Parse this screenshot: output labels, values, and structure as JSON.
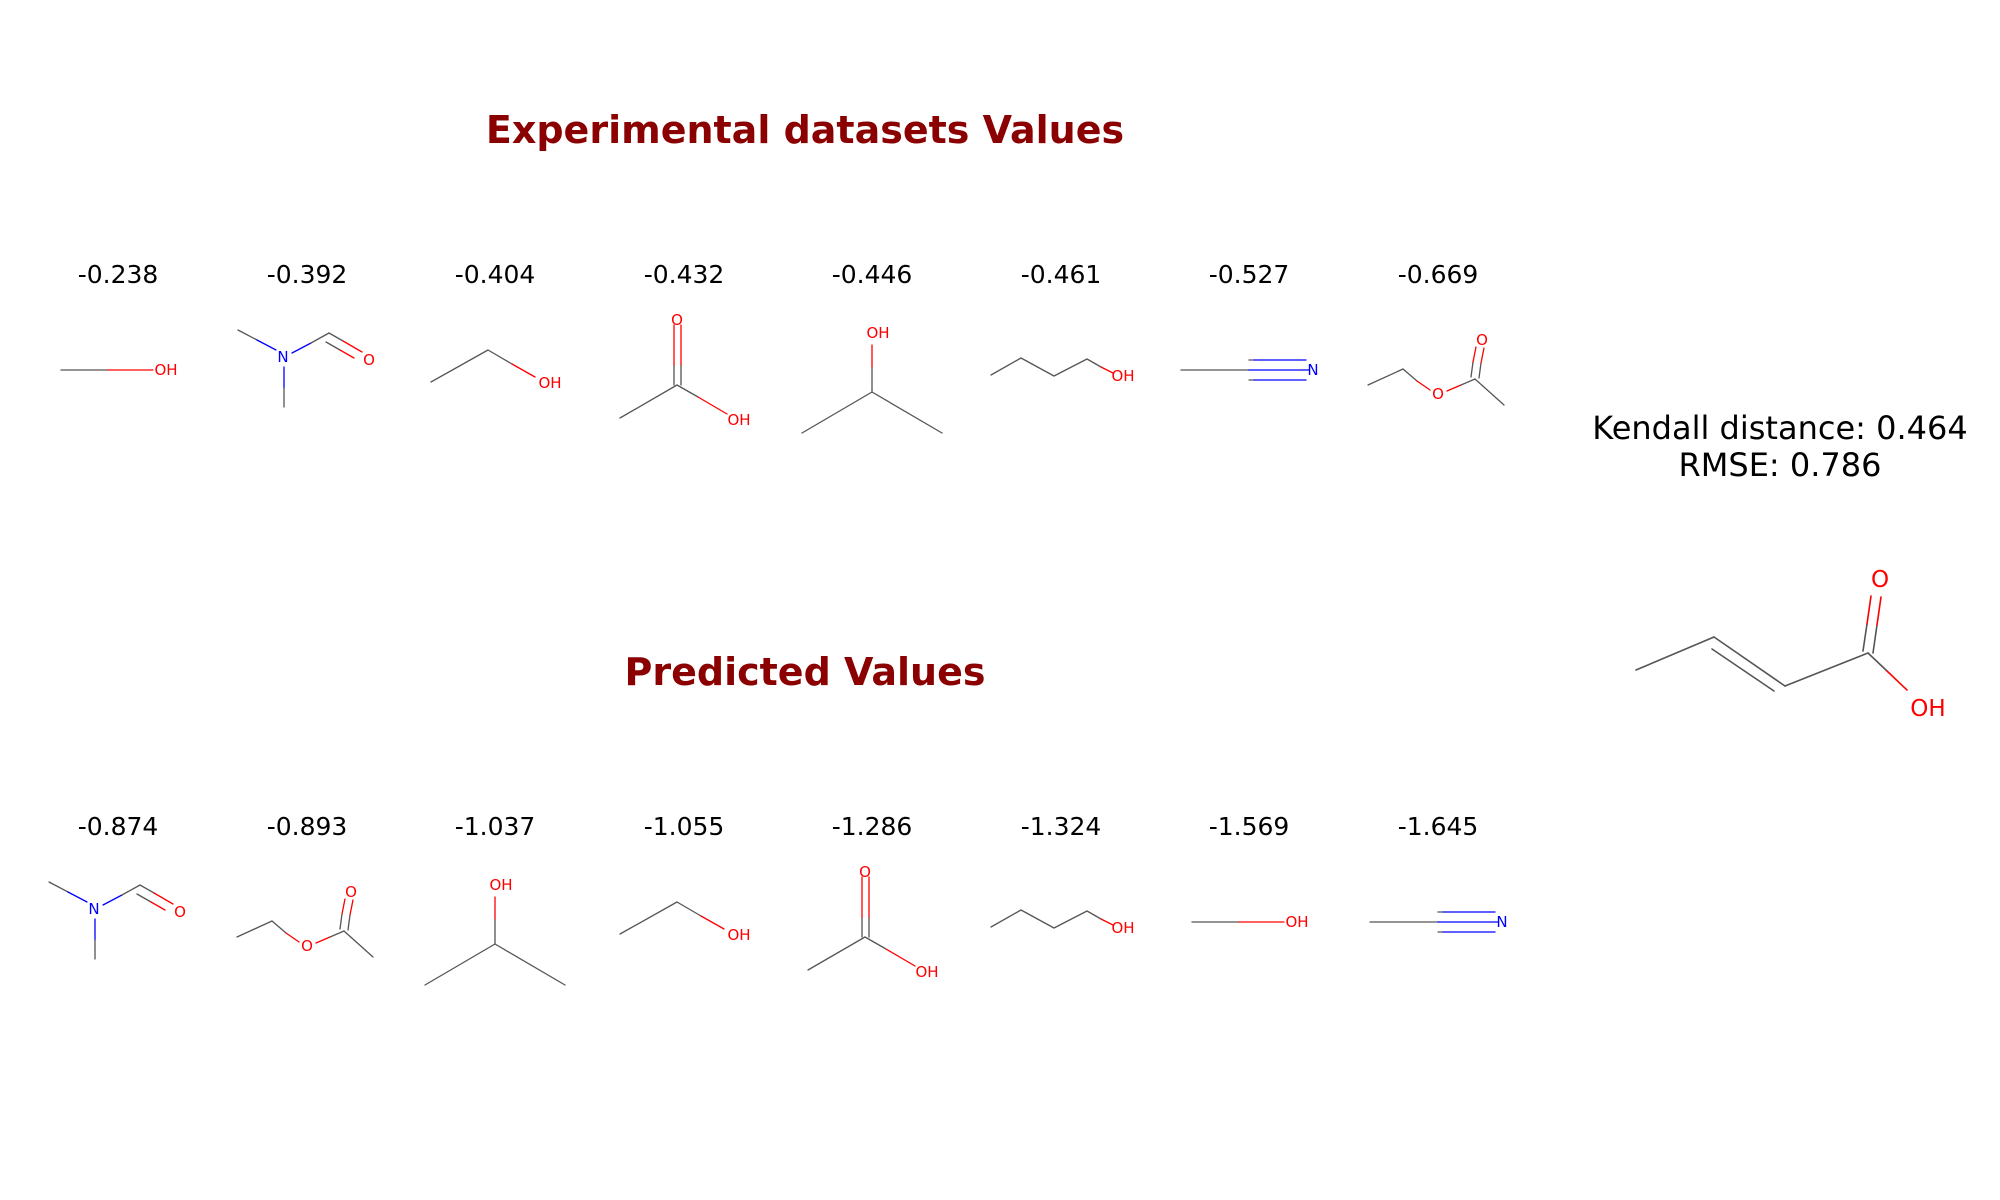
{
  "title_color": "#8b0000",
  "bond_color": "#555555",
  "oxygen_color": "#ff0000",
  "nitrogen_color": "#0000ff",
  "experimental": {
    "title": "Experimental datasets Values",
    "items": [
      {
        "value": "-0.238",
        "molecule": "methanol"
      },
      {
        "value": "-0.392",
        "molecule": "dmf"
      },
      {
        "value": "-0.404",
        "molecule": "ethanol"
      },
      {
        "value": "-0.432",
        "molecule": "acetic_acid"
      },
      {
        "value": "-0.446",
        "molecule": "isopropanol"
      },
      {
        "value": "-0.461",
        "molecule": "butanol"
      },
      {
        "value": "-0.527",
        "molecule": "acetonitrile"
      },
      {
        "value": "-0.669",
        "molecule": "ethyl_acetate"
      }
    ]
  },
  "predicted": {
    "title": "Predicted Values",
    "items": [
      {
        "value": "-0.874",
        "molecule": "dmf"
      },
      {
        "value": "-0.893",
        "molecule": "ethyl_acetate"
      },
      {
        "value": "-1.037",
        "molecule": "isopropanol"
      },
      {
        "value": "-1.055",
        "molecule": "ethanol"
      },
      {
        "value": "-1.286",
        "molecule": "acetic_acid"
      },
      {
        "value": "-1.324",
        "molecule": "butanol"
      },
      {
        "value": "-1.569",
        "molecule": "methanol"
      },
      {
        "value": "-1.645",
        "molecule": "acetonitrile"
      }
    ]
  },
  "metrics": {
    "kendall": "Kendall distance: 0.464",
    "rmse": "RMSE: 0.786"
  },
  "atom_labels": {
    "oxygen": "O",
    "hydroxyl": "OH",
    "nitrogen": "N"
  },
  "query_molecule": "crotonic_acid"
}
